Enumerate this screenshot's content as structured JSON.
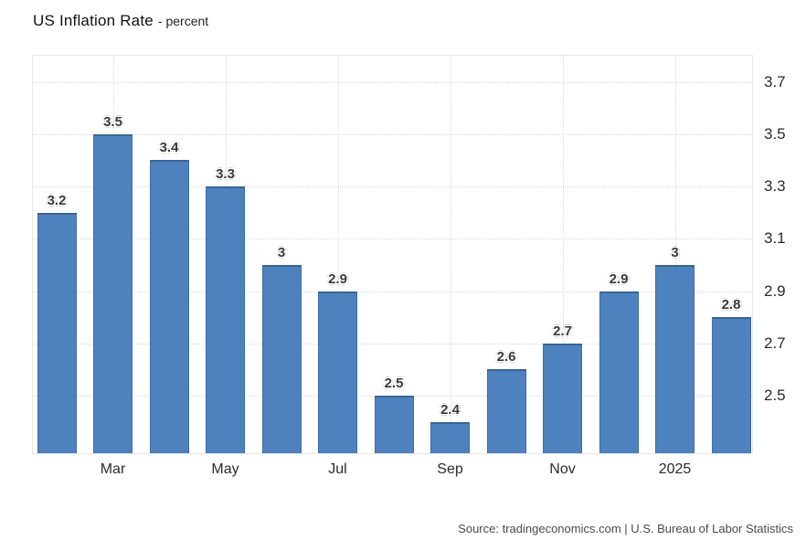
{
  "header": {
    "title": "US Inflation Rate",
    "subtitle": "- percent"
  },
  "footer": {
    "source": "Source: tradingeconomics.com | U.S. Bureau of Labor Statistics"
  },
  "chart_data": {
    "type": "bar",
    "title": "US Inflation Rate",
    "subtitle": "- percent",
    "unit": "percent",
    "values": [
      3.2,
      3.5,
      3.4,
      3.3,
      3.0,
      2.9,
      2.5,
      2.4,
      2.6,
      2.7,
      2.9,
      3.0,
      2.8
    ],
    "bar_labels": [
      "3.2",
      "3.5",
      "3.4",
      "3.3",
      "3",
      "2.9",
      "2.5",
      "2.4",
      "2.6",
      "2.7",
      "2.9",
      "3",
      "2.8"
    ],
    "x_ticks": [
      {
        "label": "Mar",
        "bar_index": 1
      },
      {
        "label": "May",
        "bar_index": 3
      },
      {
        "label": "Jul",
        "bar_index": 5
      },
      {
        "label": "Sep",
        "bar_index": 7
      },
      {
        "label": "Nov",
        "bar_index": 9
      },
      {
        "label": "2025",
        "bar_index": 11
      }
    ],
    "y_ticks": [
      "3.7",
      "3.5",
      "3.3",
      "3.1",
      "2.9",
      "2.7",
      "2.5"
    ],
    "ylim": [
      2.28,
      3.8
    ],
    "y_axis_position": "right",
    "grid": "dotted",
    "bar_color": "#4d82be",
    "source": "Source: tradingeconomics.com | U.S. Bureau of Labor Statistics"
  }
}
